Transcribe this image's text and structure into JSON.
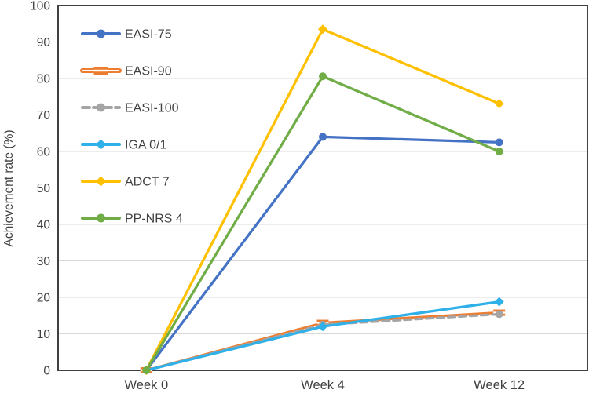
{
  "figure": {
    "background": "#FFFFFF",
    "border_color": "#404040",
    "grid_color": "#D9D9D9",
    "text_color": "#404040"
  },
  "chart_data": {
    "type": "line",
    "title": "",
    "xlabel": "",
    "ylabel": "Achievement rate (%)",
    "categories": [
      "Week 0",
      "Week 4",
      "Week 12"
    ],
    "ylim": [
      0,
      100
    ],
    "yticks": [
      0,
      10,
      20,
      30,
      40,
      50,
      60,
      70,
      80,
      90,
      100
    ],
    "grid": "horizontal",
    "legend_position": "inside-top-left",
    "series": [
      {
        "name": "EASI-75",
        "color": "#4472C4",
        "marker": "circle",
        "line_style": "solid",
        "values": [
          0,
          64.0,
          62.5
        ]
      },
      {
        "name": "EASI-90",
        "color": "#ED7D31",
        "marker": "dash-bar",
        "line_style": "solid",
        "values": [
          0,
          13.0,
          15.8
        ]
      },
      {
        "name": "EASI-100",
        "color": "#A5A5A5",
        "marker": "circle",
        "line_style": "dashed",
        "values": [
          0,
          12.5,
          15.4
        ]
      },
      {
        "name": "IGA 0/1",
        "color": "#2FB0E8",
        "marker": "diamond",
        "line_style": "solid",
        "values": [
          0,
          12.0,
          18.8
        ]
      },
      {
        "name": "ADCT 7",
        "color": "#FFC000",
        "marker": "diamond",
        "line_style": "solid",
        "values": [
          0,
          93.5,
          73.1
        ]
      },
      {
        "name": "PP-NRS 4",
        "color": "#70AD47",
        "marker": "circle",
        "line_style": "solid",
        "values": [
          0,
          80.6,
          60.0
        ]
      }
    ]
  }
}
